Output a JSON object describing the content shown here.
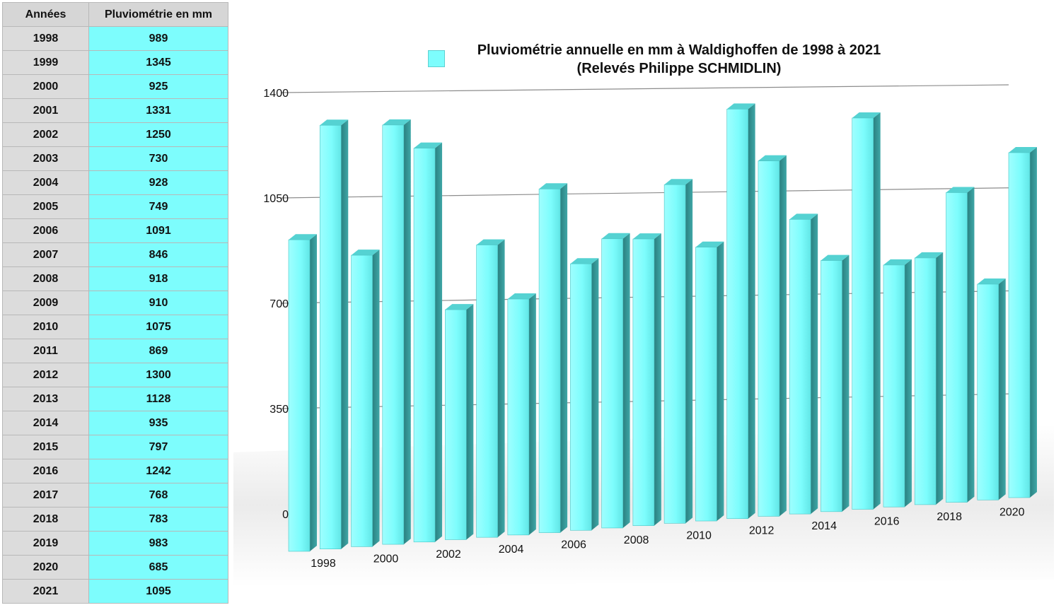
{
  "table": {
    "headers": [
      "Années",
      "Pluviométrie en mm"
    ],
    "rows": [
      [
        "1998",
        "989"
      ],
      [
        "1999",
        "1345"
      ],
      [
        "2000",
        "925"
      ],
      [
        "2001",
        "1331"
      ],
      [
        "2002",
        "1250"
      ],
      [
        "2003",
        "730"
      ],
      [
        "2004",
        "928"
      ],
      [
        "2005",
        "749"
      ],
      [
        "2006",
        "1091"
      ],
      [
        "2007",
        "846"
      ],
      [
        "2008",
        "918"
      ],
      [
        "2009",
        "910"
      ],
      [
        "2010",
        "1075"
      ],
      [
        "2011",
        "869"
      ],
      [
        "2012",
        "1300"
      ],
      [
        "2013",
        "1128"
      ],
      [
        "2014",
        "935"
      ],
      [
        "2015",
        "797"
      ],
      [
        "2016",
        "1242"
      ],
      [
        "2017",
        "768"
      ],
      [
        "2018",
        "783"
      ],
      [
        "2019",
        "983"
      ],
      [
        "2020",
        "685"
      ],
      [
        "2021",
        "1095"
      ]
    ]
  },
  "chart_data": {
    "type": "bar",
    "title": "Pluviométrie annuelle en mm à Waldighoffen de 1998 à 2021",
    "subtitle": "(Relevés Philippe SCHMIDLIN)",
    "categories": [
      "1998",
      "1999",
      "2000",
      "2001",
      "2002",
      "2003",
      "2004",
      "2005",
      "2006",
      "2007",
      "2008",
      "2009",
      "2010",
      "2011",
      "2012",
      "2013",
      "2014",
      "2015",
      "2016",
      "2017",
      "2018",
      "2019",
      "2020",
      "2021"
    ],
    "x_tick_labels": [
      "1998",
      "2000",
      "2002",
      "2004",
      "2006",
      "2008",
      "2010",
      "2012",
      "2014",
      "2016",
      "2018",
      "2020"
    ],
    "series": [
      {
        "values": [
          989,
          1345,
          925,
          1331,
          1250,
          730,
          928,
          749,
          1091,
          846,
          918,
          910,
          1075,
          869,
          1300,
          1128,
          935,
          797,
          1242,
          768,
          783,
          983,
          685,
          1095
        ]
      }
    ],
    "y_ticks": [
      0,
      350,
      700,
      1050,
      1400
    ],
    "ylim": [
      0,
      1400
    ],
    "grid": true,
    "legend_position": "top-left of title",
    "colors": {
      "bar_front": "#7dfdfd",
      "bar_side": "#2e8f8f",
      "bar_top": "#58d8d8"
    }
  }
}
